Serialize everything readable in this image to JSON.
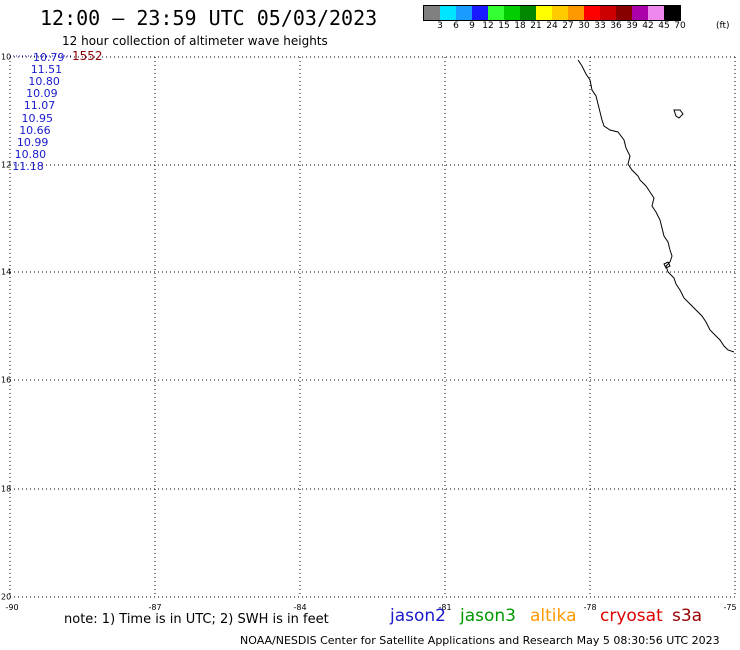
{
  "title": "12:00 – 23:59 UTC 05/03/2023",
  "subtitle": "12 hour collection of altimeter wave heights",
  "colorbar": {
    "unit_label": "(ft)",
    "labels": [
      "3",
      "6",
      "9",
      "12",
      "15",
      "18",
      "21",
      "24",
      "27",
      "30",
      "33",
      "36",
      "39",
      "42",
      "45",
      "70"
    ],
    "colors": [
      "#808080",
      "#00e5ff",
      "#1a9cff",
      "#1a1aff",
      "#33ff33",
      "#00cc00",
      "#008800",
      "#ffff00",
      "#ffcc00",
      "#ff9900",
      "#ff0000",
      "#cc0000",
      "#880000",
      "#aa00aa",
      "#ee88ee",
      "#000000"
    ]
  },
  "map": {
    "y_tick_labels": [
      "10",
      "12",
      "14",
      "16",
      "18",
      "20"
    ],
    "x_tick_labels": [
      "-90",
      "-87",
      "-84",
      "-81",
      "-78",
      "-75"
    ],
    "grid": true
  },
  "observations": [
    {
      "value": "10.79",
      "color": "#1a1acc"
    },
    {
      "value": "11.51",
      "color": "#1a1acc"
    },
    {
      "value": "10.80",
      "color": "#1a1acc"
    },
    {
      "value": "10.09",
      "color": "#1a1acc"
    },
    {
      "value": "11.07",
      "color": "#1a1acc"
    },
    {
      "value": "10.95",
      "color": "#1a1acc"
    },
    {
      "value": "10.66",
      "color": "#1a1acc"
    },
    {
      "value": "10.99",
      "color": "#1a1acc"
    },
    {
      "value": "10.80",
      "color": "#1a1acc"
    },
    {
      "value": "11.18",
      "color": "#1a1acc"
    }
  ],
  "track_time_label": {
    "text": "1552",
    "color": "#8b0000"
  },
  "note": "note: 1) Time is in UTC; 2) SWH is in feet",
  "satellites": [
    {
      "name": "jason2",
      "color": "#1a1acc"
    },
    {
      "name": "jason3",
      "color": "#009900"
    },
    {
      "name": "altika",
      "color": "#ff9900"
    },
    {
      "name": "cryosat",
      "color": "#dd0000"
    },
    {
      "name": "s3a",
      "color": "#990000"
    }
  ],
  "footer": "NOAA/NESDIS Center for Satellite Applications and Research   May  5 08:30:56 UTC 2023"
}
